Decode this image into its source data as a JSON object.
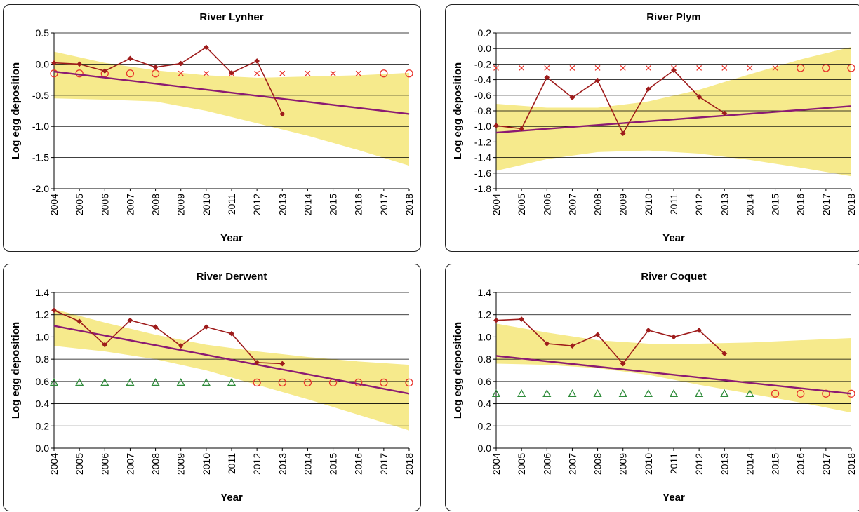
{
  "chart_data": [
    {
      "type": "line",
      "title": "River Lynher",
      "xlabel": "Year",
      "ylabel": "Log egg deposition",
      "x": [
        2004,
        2005,
        2006,
        2007,
        2008,
        2009,
        2010,
        2011,
        2012,
        2013,
        2014,
        2015,
        2016,
        2017,
        2018
      ],
      "ylim": [
        -2.0,
        0.5
      ],
      "yticks": [
        -2.0,
        -1.5,
        -1.0,
        -0.5,
        0.0,
        0.5
      ],
      "ytick_labels": [
        "-2.0",
        "-1.5",
        "-1.0",
        "-0.5",
        "0.0",
        "0.5"
      ],
      "grid": true,
      "observed": {
        "x": [
          2004,
          2005,
          2006,
          2007,
          2008,
          2009,
          2010,
          2011,
          2012,
          2013
        ],
        "y": [
          0.02,
          0.0,
          -0.11,
          0.09,
          -0.05,
          0.01,
          0.27,
          -0.14,
          0.05,
          -0.8
        ],
        "color": "#9e1b1b"
      },
      "trend": {
        "x": [
          2004,
          2018
        ],
        "y": [
          -0.12,
          -0.8
        ],
        "color": "#8b1a73"
      },
      "band": {
        "x": [
          2004,
          2006,
          2008,
          2010,
          2012,
          2014,
          2016,
          2018
        ],
        "lower": [
          -0.55,
          -0.57,
          -0.6,
          -0.75,
          -0.95,
          -1.15,
          -1.38,
          -1.63
        ],
        "upper": [
          0.2,
          0.02,
          -0.1,
          -0.18,
          -0.22,
          -0.2,
          -0.18,
          -0.14
        ],
        "color": "#f6ea8c"
      },
      "markers": [
        {
          "symbol": "circle",
          "color": "#e8342c",
          "x": [
            2004,
            2005,
            2006,
            2007,
            2008
          ],
          "y": -0.15
        },
        {
          "symbol": "cross",
          "color": "#e8342c",
          "x": [
            2009,
            2010,
            2011,
            2012,
            2013,
            2014,
            2015,
            2016
          ],
          "y": -0.15
        },
        {
          "symbol": "circle",
          "color": "#e8342c",
          "x": [
            2017,
            2018
          ],
          "y": -0.15
        }
      ]
    },
    {
      "type": "line",
      "title": "River Plym",
      "xlabel": "Year",
      "ylabel": "Log egg deposition",
      "x": [
        2004,
        2005,
        2006,
        2007,
        2008,
        2009,
        2010,
        2011,
        2012,
        2013,
        2014,
        2015,
        2016,
        2017,
        2018
      ],
      "ylim": [
        -1.8,
        0.2
      ],
      "yticks": [
        -1.8,
        -1.6,
        -1.4,
        -1.2,
        -1.0,
        -0.8,
        -0.6,
        -0.4,
        -0.2,
        0.0,
        0.2
      ],
      "ytick_labels": [
        "-1.8",
        "-1.6",
        "-1.4",
        "-1.2",
        "-1.0",
        "-0.8",
        "-0.6",
        "-0.4",
        "-0.2",
        "0.0",
        "0.2"
      ],
      "grid": true,
      "observed": {
        "x": [
          2004,
          2005,
          2006,
          2007,
          2008,
          2009,
          2010,
          2011,
          2012,
          2013
        ],
        "y": [
          -0.99,
          -1.03,
          -0.37,
          -0.63,
          -0.41,
          -1.09,
          -0.52,
          -0.28,
          -0.62,
          -0.83
        ],
        "color": "#9e1b1b"
      },
      "trend": {
        "x": [
          2004,
          2018
        ],
        "y": [
          -1.08,
          -0.74
        ],
        "color": "#8b1a73"
      },
      "band": {
        "x": [
          2004,
          2006,
          2008,
          2010,
          2012,
          2014,
          2016,
          2018
        ],
        "lower": [
          -1.57,
          -1.42,
          -1.33,
          -1.31,
          -1.35,
          -1.43,
          -1.53,
          -1.64
        ],
        "upper": [
          -0.71,
          -0.76,
          -0.76,
          -0.68,
          -0.53,
          -0.33,
          -0.14,
          0.02
        ],
        "color": "#f6ea8c"
      },
      "markers": [
        {
          "symbol": "cross",
          "color": "#e8342c",
          "x": [
            2004,
            2005,
            2006,
            2007,
            2008,
            2009,
            2010,
            2011,
            2012,
            2013,
            2014,
            2015
          ],
          "y": -0.25
        },
        {
          "symbol": "circle",
          "color": "#e8342c",
          "x": [
            2016,
            2017,
            2018
          ],
          "y": -0.25
        }
      ]
    },
    {
      "type": "line",
      "title": "River Derwent",
      "xlabel": "Year",
      "ylabel": "Log egg deposition",
      "x": [
        2004,
        2005,
        2006,
        2007,
        2008,
        2009,
        2010,
        2011,
        2012,
        2013,
        2014,
        2015,
        2016,
        2017,
        2018
      ],
      "ylim": [
        0.0,
        1.4
      ],
      "yticks": [
        0.0,
        0.2,
        0.4,
        0.6,
        0.8,
        1.0,
        1.2,
        1.4
      ],
      "ytick_labels": [
        "0.0",
        "0.2",
        "0.4",
        "0.6",
        "0.8",
        "1.0",
        "1.2",
        "1.4"
      ],
      "grid": true,
      "observed": {
        "x": [
          2004,
          2005,
          2006,
          2007,
          2008,
          2009,
          2010,
          2011,
          2012,
          2013
        ],
        "y": [
          1.24,
          1.14,
          0.93,
          1.15,
          1.09,
          0.92,
          1.09,
          1.03,
          0.77,
          0.76
        ],
        "color": "#9e1b1b"
      },
      "trend": {
        "x": [
          2004,
          2018
        ],
        "y": [
          1.1,
          0.49
        ],
        "color": "#8b1a73"
      },
      "band": {
        "x": [
          2004,
          2006,
          2008,
          2010,
          2012,
          2014,
          2016,
          2018
        ],
        "lower": [
          0.92,
          0.87,
          0.8,
          0.7,
          0.57,
          0.44,
          0.3,
          0.16
        ],
        "upper": [
          1.25,
          1.13,
          1.02,
          0.93,
          0.87,
          0.82,
          0.78,
          0.75
        ],
        "color": "#f6ea8c"
      },
      "markers": [
        {
          "symbol": "triangle",
          "color": "#2e8b3a",
          "x": [
            2004,
            2005,
            2006,
            2007,
            2008,
            2009,
            2010,
            2011
          ],
          "y": 0.59
        },
        {
          "symbol": "circle",
          "color": "#e8342c",
          "x": [
            2012,
            2013,
            2014,
            2015,
            2016,
            2017,
            2018
          ],
          "y": 0.59
        }
      ]
    },
    {
      "type": "line",
      "title": "River Coquet",
      "xlabel": "Year",
      "ylabel": "Log egg deposition",
      "x": [
        2004,
        2005,
        2006,
        2007,
        2008,
        2009,
        2010,
        2011,
        2012,
        2013,
        2014,
        2015,
        2016,
        2017,
        2018
      ],
      "ylim": [
        0.0,
        1.4
      ],
      "yticks": [
        0.0,
        0.2,
        0.4,
        0.6,
        0.8,
        1.0,
        1.2,
        1.4
      ],
      "ytick_labels": [
        "0.0",
        "0.2",
        "0.4",
        "0.6",
        "0.8",
        "1.0",
        "1.2",
        "1.4"
      ],
      "grid": true,
      "observed": {
        "x": [
          2004,
          2005,
          2006,
          2007,
          2008,
          2009,
          2010,
          2011,
          2012,
          2013
        ],
        "y": [
          1.15,
          1.16,
          0.94,
          0.92,
          1.02,
          0.76,
          1.06,
          1.0,
          1.06,
          0.85
        ],
        "color": "#9e1b1b"
      },
      "trend": {
        "x": [
          2004,
          2018
        ],
        "y": [
          0.83,
          0.49
        ],
        "color": "#8b1a73"
      },
      "band": {
        "x": [
          2004,
          2006,
          2008,
          2010,
          2012,
          2014,
          2016,
          2018
        ],
        "lower": [
          0.76,
          0.75,
          0.72,
          0.66,
          0.57,
          0.49,
          0.41,
          0.32
        ],
        "upper": [
          1.12,
          1.04,
          0.97,
          0.94,
          0.94,
          0.95,
          0.97,
          0.99
        ],
        "color": "#f6ea8c"
      },
      "markers": [
        {
          "symbol": "triangle",
          "color": "#2e8b3a",
          "x": [
            2004,
            2005,
            2006,
            2007,
            2008,
            2009,
            2010,
            2011,
            2012,
            2013,
            2014
          ],
          "y": 0.49
        },
        {
          "symbol": "circle",
          "color": "#e8342c",
          "x": [
            2015,
            2016,
            2017,
            2018
          ],
          "y": 0.49
        }
      ]
    }
  ]
}
